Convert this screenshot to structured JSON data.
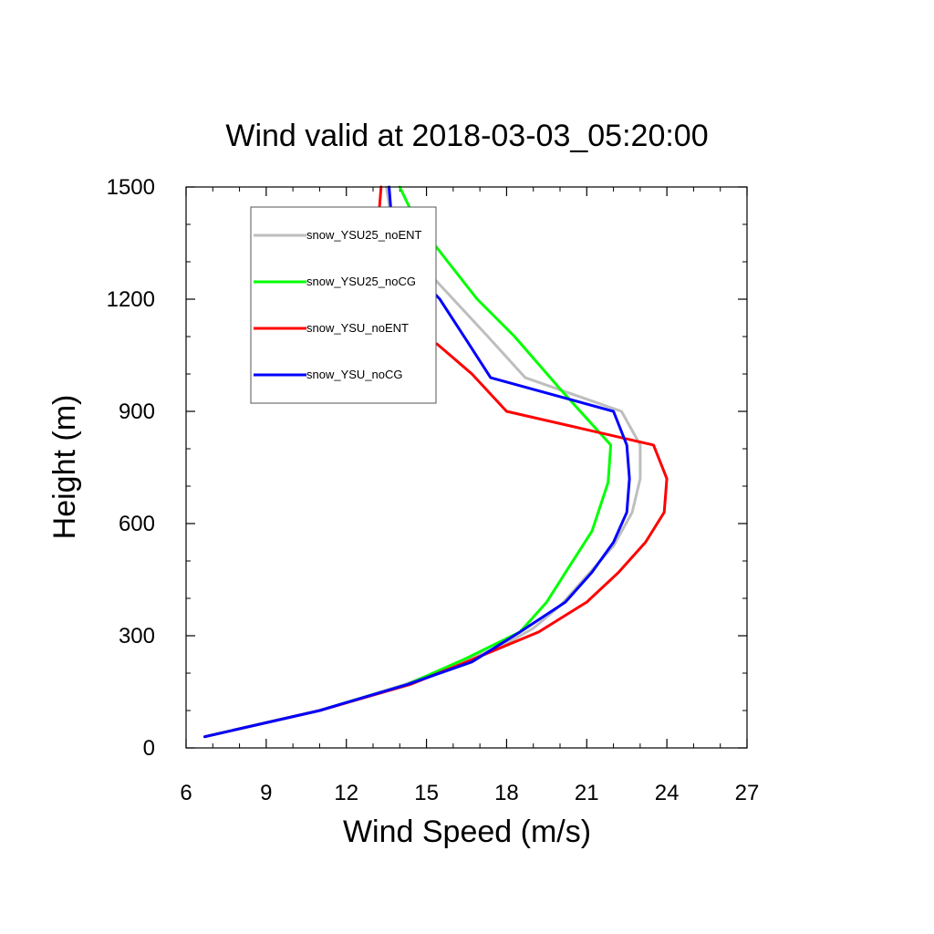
{
  "chart_data": {
    "type": "line",
    "title": "Wind valid at 2018-03-03_05:20:00",
    "xlabel": "Wind Speed (m/s)",
    "ylabel": "Height (m)",
    "xlim": [
      6,
      27
    ],
    "ylim": [
      0,
      1500
    ],
    "xticks": [
      6,
      9,
      12,
      15,
      18,
      21,
      24,
      27
    ],
    "yticks": [
      0,
      300,
      600,
      900,
      1200,
      1500
    ],
    "grid": false,
    "legend": "top-left",
    "series": [
      {
        "name": "snow_YSU25_noENT",
        "color": "#bebebe",
        "x": [
          6.7,
          11.0,
          14.2,
          16.7,
          18.0,
          19.0,
          20.0,
          21.0,
          22.0,
          22.7,
          23.0,
          23.0,
          22.3,
          18.7,
          17.3,
          16.0,
          14.7,
          13.7,
          13.5
        ],
        "y": [
          30,
          100,
          170,
          240,
          280,
          320,
          380,
          460,
          540,
          630,
          720,
          810,
          900,
          990,
          1100,
          1200,
          1300,
          1410,
          1500
        ]
      },
      {
        "name": "snow_YSU25_noCG",
        "color": "#00ff00",
        "x": [
          6.7,
          11.0,
          14.3,
          16.5,
          18.5,
          19.5,
          20.3,
          21.2,
          21.8,
          21.9,
          20.0,
          18.3,
          16.9,
          15.8,
          14.6,
          14.0
        ],
        "y": [
          30,
          100,
          170,
          240,
          310,
          390,
          480,
          580,
          710,
          810,
          960,
          1100,
          1200,
          1300,
          1410,
          1500
        ]
      },
      {
        "name": "snow_YSU_noENT",
        "color": "#ff0000",
        "x": [
          6.7,
          11.0,
          14.4,
          16.5,
          19.2,
          21.0,
          22.2,
          23.2,
          23.9,
          24.0,
          23.5,
          18.0,
          16.7,
          15.4,
          14.3,
          13.2,
          12.9,
          13.2,
          13.3
        ],
        "y": [
          30,
          100,
          170,
          230,
          310,
          390,
          470,
          550,
          630,
          720,
          810,
          900,
          1000,
          1080,
          1100,
          1200,
          1300,
          1410,
          1500
        ]
      },
      {
        "name": "snow_YSU_noCG",
        "color": "#0000ff",
        "x": [
          6.7,
          11.0,
          14.3,
          16.7,
          18.5,
          20.2,
          21.2,
          22.0,
          22.5,
          22.6,
          22.5,
          22.0,
          17.4,
          16.5,
          15.5,
          14.2,
          13.7,
          13.6
        ],
        "y": [
          30,
          100,
          170,
          230,
          310,
          390,
          470,
          550,
          630,
          720,
          810,
          900,
          990,
          1090,
          1200,
          1300,
          1410,
          1500
        ]
      }
    ]
  }
}
